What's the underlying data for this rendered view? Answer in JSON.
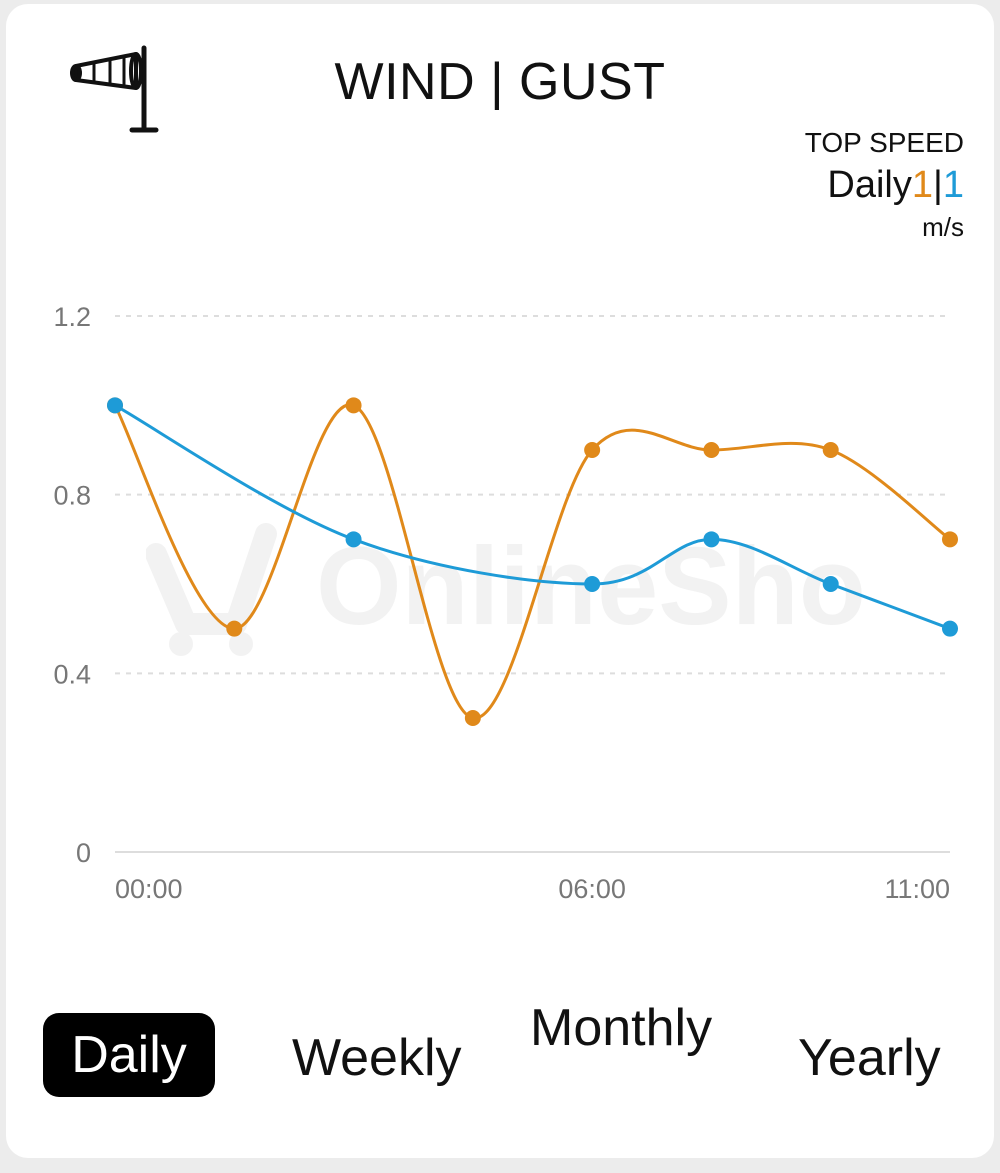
{
  "header": {
    "title": "WIND | GUST",
    "icon": "windsock-icon"
  },
  "top_speed": {
    "label": "TOP SPEED",
    "period": "Daily",
    "gust_value": "1",
    "separator": "|",
    "wind_value": "1",
    "unit": "m/s"
  },
  "watermark": {
    "text": "OnlineShop"
  },
  "colors": {
    "gust": "#e0891a",
    "wind": "#1e9bd7",
    "grid": "#dddddd",
    "axis_text": "#777777"
  },
  "chart_data": {
    "type": "line",
    "x_tick_labels": [
      "00:00",
      "06:00",
      "11:00"
    ],
    "y_tick_labels": [
      "0",
      "0.4",
      "0.8",
      "1.2"
    ],
    "ylim": [
      0,
      1.2
    ],
    "grid": true,
    "x": [
      0,
      1,
      2,
      3,
      4,
      5,
      6,
      7
    ],
    "series": [
      {
        "color": "#e0891a",
        "values": [
          1.0,
          0.5,
          1.0,
          0.3,
          0.9,
          0.9,
          0.9,
          0.7
        ]
      },
      {
        "color": "#1e9bd7",
        "values": [
          1.0,
          null,
          0.7,
          null,
          0.6,
          0.7,
          0.6,
          0.5
        ]
      }
    ]
  },
  "tabs": [
    {
      "label": "Daily",
      "selected": true
    },
    {
      "label": "Weekly",
      "selected": false
    },
    {
      "label": "Monthly",
      "selected": false
    },
    {
      "label": "Yearly",
      "selected": false
    }
  ]
}
